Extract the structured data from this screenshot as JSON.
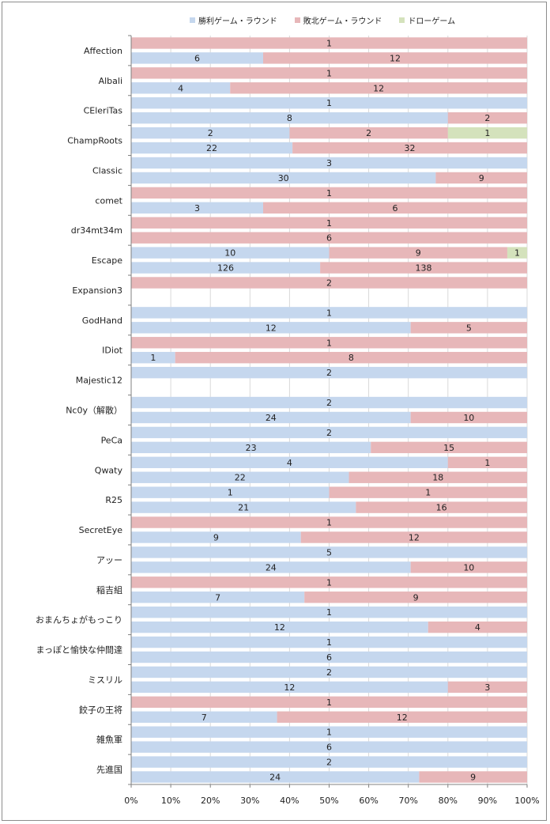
{
  "chart_data": {
    "type": "bar",
    "subtype": "stacked-percent-horizontal",
    "legend_position": "top",
    "grid": true,
    "xlim": [
      0,
      100
    ],
    "x_tick_labels": [
      "0%",
      "10%",
      "20%",
      "30%",
      "40%",
      "50%",
      "60%",
      "70%",
      "80%",
      "90%",
      "100%"
    ],
    "colors": {
      "win": "#c5d7ee",
      "loss": "#e7b7b9",
      "draw": "#d4e2bc"
    },
    "series": [
      {
        "key": "win",
        "name": "勝利ゲーム・ラウンド"
      },
      {
        "key": "loss",
        "name": "敗北ゲーム・ラウンド"
      },
      {
        "key": "draw",
        "name": "ドローゲーム"
      }
    ],
    "groups": [
      {
        "label": "Affection",
        "rows": [
          {
            "win": 0,
            "loss": 1,
            "draw": 0
          },
          {
            "win": 6,
            "loss": 12,
            "draw": 0
          }
        ]
      },
      {
        "label": "Albali",
        "rows": [
          {
            "win": 0,
            "loss": 1,
            "draw": 0
          },
          {
            "win": 4,
            "loss": 12,
            "draw": 0
          }
        ]
      },
      {
        "label": "CEleriTas",
        "rows": [
          {
            "win": 1,
            "loss": 0,
            "draw": 0
          },
          {
            "win": 8,
            "loss": 2,
            "draw": 0
          }
        ]
      },
      {
        "label": "ChampRoots",
        "rows": [
          {
            "win": 2,
            "loss": 2,
            "draw": 1
          },
          {
            "win": 22,
            "loss": 32,
            "draw": 0
          }
        ]
      },
      {
        "label": "Classic",
        "rows": [
          {
            "win": 3,
            "loss": 0,
            "draw": 0
          },
          {
            "win": 30,
            "loss": 9,
            "draw": 0
          }
        ]
      },
      {
        "label": "comet",
        "rows": [
          {
            "win": 0,
            "loss": 1,
            "draw": 0
          },
          {
            "win": 3,
            "loss": 6,
            "draw": 0
          }
        ]
      },
      {
        "label": "dr34mt34m",
        "rows": [
          {
            "win": 0,
            "loss": 1,
            "draw": 0
          },
          {
            "win": 0,
            "loss": 6,
            "draw": 0
          }
        ]
      },
      {
        "label": "Escape",
        "rows": [
          {
            "win": 10,
            "loss": 9,
            "draw": 1
          },
          {
            "win": 126,
            "loss": 138,
            "draw": 0
          }
        ]
      },
      {
        "label": "Expansion3",
        "rows": [
          {
            "win": 0,
            "loss": 2,
            "draw": 0
          },
          null
        ]
      },
      {
        "label": "GodHand",
        "rows": [
          {
            "win": 1,
            "loss": 0,
            "draw": 0
          },
          {
            "win": 12,
            "loss": 5,
            "draw": 0
          }
        ]
      },
      {
        "label": "IDiot",
        "rows": [
          {
            "win": 0,
            "loss": 1,
            "draw": 0
          },
          {
            "win": 1,
            "loss": 8,
            "draw": 0
          }
        ]
      },
      {
        "label": "Majestic12",
        "rows": [
          {
            "win": 2,
            "loss": 0,
            "draw": 0
          },
          null
        ]
      },
      {
        "label": "Nc0y（解散）",
        "rows": [
          {
            "win": 2,
            "loss": 0,
            "draw": 0
          },
          {
            "win": 24,
            "loss": 10,
            "draw": 0
          }
        ]
      },
      {
        "label": "PeCa",
        "rows": [
          {
            "win": 2,
            "loss": 0,
            "draw": 0
          },
          {
            "win": 23,
            "loss": 15,
            "draw": 0
          }
        ]
      },
      {
        "label": "Qwaty",
        "rows": [
          {
            "win": 4,
            "loss": 1,
            "draw": 0
          },
          {
            "win": 22,
            "loss": 18,
            "draw": 0
          }
        ]
      },
      {
        "label": "R25",
        "rows": [
          {
            "win": 1,
            "loss": 1,
            "draw": 0
          },
          {
            "win": 21,
            "loss": 16,
            "draw": 0
          }
        ]
      },
      {
        "label": "SecretEye",
        "rows": [
          {
            "win": 0,
            "loss": 1,
            "draw": 0
          },
          {
            "win": 9,
            "loss": 12,
            "draw": 0
          }
        ]
      },
      {
        "label": "アッー",
        "rows": [
          {
            "win": 5,
            "loss": 0,
            "draw": 0
          },
          {
            "win": 24,
            "loss": 10,
            "draw": 0
          }
        ]
      },
      {
        "label": "稲吉組",
        "rows": [
          {
            "win": 0,
            "loss": 1,
            "draw": 0
          },
          {
            "win": 7,
            "loss": 9,
            "draw": 0
          }
        ]
      },
      {
        "label": "おまんちょがもっこり",
        "rows": [
          {
            "win": 1,
            "loss": 0,
            "draw": 0
          },
          {
            "win": 12,
            "loss": 4,
            "draw": 0
          }
        ]
      },
      {
        "label": "まっぽと愉快な仲間達",
        "rows": [
          {
            "win": 1,
            "loss": 0,
            "draw": 0
          },
          {
            "win": 6,
            "loss": 0,
            "draw": 0
          }
        ]
      },
      {
        "label": "ミスリル",
        "rows": [
          {
            "win": 2,
            "loss": 0,
            "draw": 0
          },
          {
            "win": 12,
            "loss": 3,
            "draw": 0
          }
        ]
      },
      {
        "label": "餃子の王将",
        "rows": [
          {
            "win": 0,
            "loss": 1,
            "draw": 0
          },
          {
            "win": 7,
            "loss": 12,
            "draw": 0
          }
        ]
      },
      {
        "label": "雑魚軍",
        "rows": [
          {
            "win": 1,
            "loss": 0,
            "draw": 0
          },
          {
            "win": 6,
            "loss": 0,
            "draw": 0
          }
        ]
      },
      {
        "label": "先進国",
        "rows": [
          {
            "win": 2,
            "loss": 0,
            "draw": 0
          },
          {
            "win": 24,
            "loss": 9,
            "draw": 0
          }
        ]
      }
    ]
  }
}
